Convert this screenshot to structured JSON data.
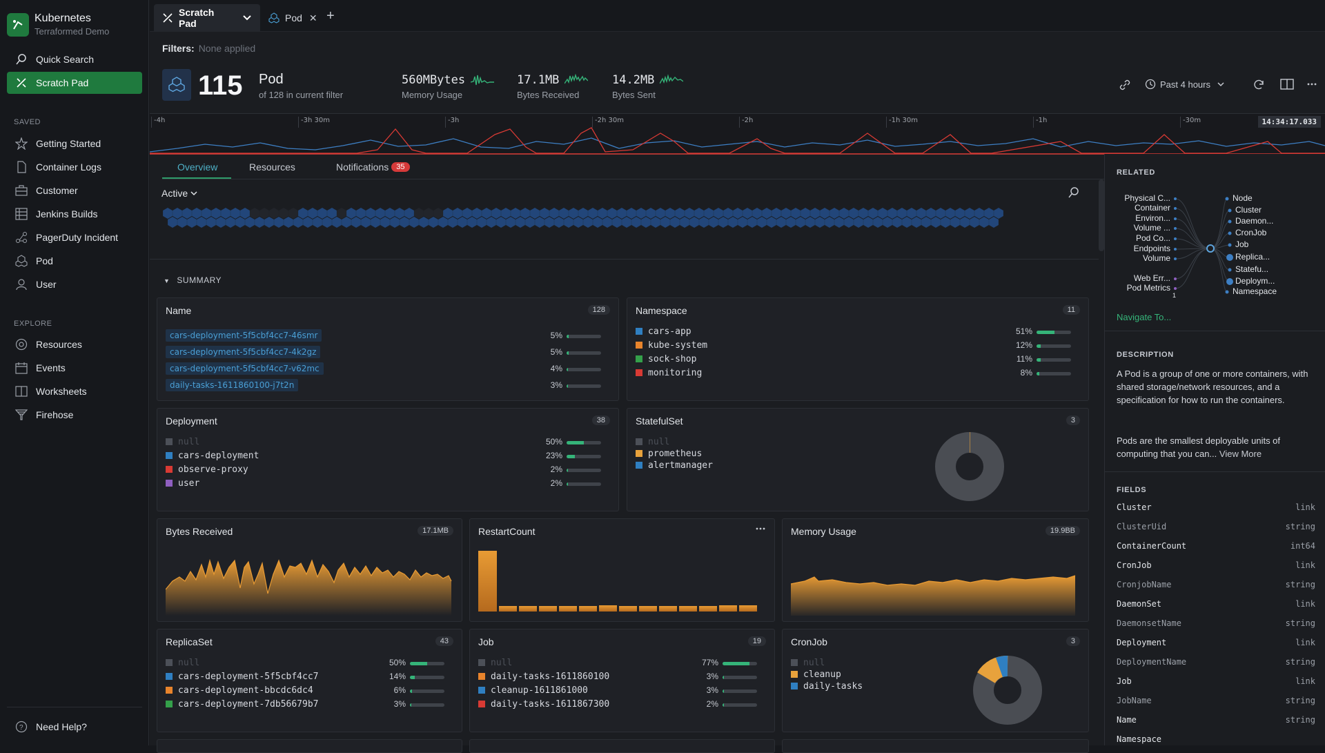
{
  "sidebar": {
    "brand_title": "Kubernetes",
    "brand_subtitle": "Terraformed Demo",
    "top_items": [
      {
        "label": "Quick Search",
        "icon": "search-icon"
      },
      {
        "label": "Scratch Pad",
        "icon": "scratch-pad-icon"
      }
    ],
    "saved_header": "SAVED",
    "saved_items": [
      {
        "label": "Getting Started",
        "icon": "star-icon"
      },
      {
        "label": "Container Logs",
        "icon": "document-icon"
      },
      {
        "label": "Customer",
        "icon": "briefcase-icon"
      },
      {
        "label": "Jenkins Builds",
        "icon": "grid-icon"
      },
      {
        "label": "PagerDuty Incident",
        "icon": "nodes-icon"
      },
      {
        "label": "Pod",
        "icon": "pod-icon"
      },
      {
        "label": "User",
        "icon": "user-icon"
      }
    ],
    "explore_header": "EXPLORE",
    "explore_items": [
      {
        "label": "Resources",
        "icon": "target-icon"
      },
      {
        "label": "Events",
        "icon": "calendar-icon"
      },
      {
        "label": "Worksheets",
        "icon": "book-icon"
      },
      {
        "label": "Firehose",
        "icon": "funnel-icon"
      }
    ],
    "help_label": "Need Help?"
  },
  "topbar": {
    "tabs": [
      {
        "label": "Scratch Pad",
        "icon": "scratch-pad-icon"
      },
      {
        "label": "Pod",
        "icon": "pod-icon"
      }
    ]
  },
  "filters": {
    "label": "Filters:",
    "value": "None applied"
  },
  "header": {
    "count": "115",
    "title": "Pod",
    "subtitle": "of 128 in current filter",
    "metrics": [
      {
        "value": "560MBytes",
        "label": "Memory Usage"
      },
      {
        "value": "17.1MB",
        "label": "Bytes Received"
      },
      {
        "value": "14.2MB",
        "label": "Bytes Sent"
      }
    ],
    "time_range": "Past 4 hours"
  },
  "timeline": {
    "ticks": [
      "-4h",
      "-3h 30m",
      "-3h",
      "-2h 30m",
      "-2h",
      "-1h 30m",
      "-1h",
      "-30m"
    ],
    "timestamp": "14:34:17.033",
    "colors": {
      "blue": "#3d7fc4",
      "red": "#d83a34"
    }
  },
  "subtabs": {
    "overview": "Overview",
    "resources": "Resources",
    "notifications": "Notifications",
    "notifications_count": "35"
  },
  "active_filter": "Active",
  "summary_label": "SUMMARY",
  "cards": {
    "name": {
      "title": "Name",
      "count": "128",
      "rows": [
        {
          "label": "cars-deployment-5f5cbf4cc7-46smr",
          "pct": "5%",
          "fill": 0.05
        },
        {
          "label": "cars-deployment-5f5cbf4cc7-4k2gz",
          "pct": "5%",
          "fill": 0.05
        },
        {
          "label": "cars-deployment-5f5cbf4cc7-v62mc",
          "pct": "4%",
          "fill": 0.04
        },
        {
          "label": "daily-tasks-1611860100-j7t2n",
          "pct": "3%",
          "fill": 0.03
        }
      ]
    },
    "namespace": {
      "title": "Namespace",
      "count": "11",
      "rows": [
        {
          "label": "cars-app",
          "pct": "51%",
          "fill": 0.51,
          "color": "#2f7fc1"
        },
        {
          "label": "kube-system",
          "pct": "12%",
          "fill": 0.12,
          "color": "#e8842c"
        },
        {
          "label": "sock-shop",
          "pct": "11%",
          "fill": 0.11,
          "color": "#34a04a"
        },
        {
          "label": "monitoring",
          "pct": "8%",
          "fill": 0.08,
          "color": "#d83a34"
        }
      ]
    },
    "deployment": {
      "title": "Deployment",
      "count": "38",
      "rows": [
        {
          "label": "null",
          "pct": "50%",
          "fill": 0.5,
          "color": "#4c5058",
          "dim": true
        },
        {
          "label": "cars-deployment",
          "pct": "23%",
          "fill": 0.23,
          "color": "#2f7fc1"
        },
        {
          "label": "observe-proxy",
          "pct": "2%",
          "fill": 0.02,
          "color": "#d83a34"
        },
        {
          "label": "user",
          "pct": "2%",
          "fill": 0.02,
          "color": "#8f5fc0"
        }
      ]
    },
    "statefulset": {
      "title": "StatefulSet",
      "count": "3",
      "rows": [
        {
          "label": "null",
          "color": "#4c5058",
          "dim": true
        },
        {
          "label": "prometheus",
          "color": "#e8a23c"
        },
        {
          "label": "alertmanager",
          "color": "#2f7fc1"
        }
      ]
    },
    "bytes_received": {
      "title": "Bytes Received",
      "count": "17.1MB"
    },
    "restart_count": {
      "title": "RestartCount"
    },
    "memory_usage": {
      "title": "Memory Usage",
      "count": "19.9BB"
    },
    "replicaset": {
      "title": "ReplicaSet",
      "count": "43",
      "rows": [
        {
          "label": "null",
          "pct": "50%",
          "fill": 0.5,
          "color": "#4c5058",
          "dim": true
        },
        {
          "label": "cars-deployment-5f5cbf4cc7",
          "pct": "14%",
          "fill": 0.14,
          "color": "#2f7fc1"
        },
        {
          "label": "cars-deployment-bbcdc6dc4",
          "pct": "6%",
          "fill": 0.06,
          "color": "#e8842c"
        },
        {
          "label": "cars-deployment-7db56679b7",
          "pct": "3%",
          "fill": 0.03,
          "color": "#34a04a"
        }
      ]
    },
    "job": {
      "title": "Job",
      "count": "19",
      "rows": [
        {
          "label": "null",
          "pct": "77%",
          "fill": 0.77,
          "color": "#4c5058",
          "dim": true
        },
        {
          "label": "daily-tasks-1611860100",
          "pct": "3%",
          "fill": 0.03,
          "color": "#e8842c"
        },
        {
          "label": "cleanup-1611861000",
          "pct": "3%",
          "fill": 0.03,
          "color": "#2f7fc1"
        },
        {
          "label": "daily-tasks-1611867300",
          "pct": "2%",
          "fill": 0.02,
          "color": "#d83a34"
        }
      ]
    },
    "cronjob": {
      "title": "CronJob",
      "count": "3",
      "rows": [
        {
          "label": "null",
          "color": "#4c5058",
          "dim": true
        },
        {
          "label": "cleanup",
          "color": "#e8a23c"
        },
        {
          "label": "daily-tasks",
          "color": "#2f7fc1"
        }
      ]
    }
  },
  "right_panel": {
    "related_header": "RELATED",
    "related_left": [
      "Physical C...",
      "Container",
      "Environ...",
      "Volume ...",
      "Pod Co...",
      "Endpoints",
      "Volume",
      "Web Err...",
      "Pod Metrics"
    ],
    "related_right": [
      "Node",
      "Cluster",
      "Daemon...",
      "CronJob",
      "Job",
      "Replica...",
      "Statefu...",
      "Deploym...",
      "Namespace"
    ],
    "related_page": "1",
    "navigate": "Navigate To...",
    "description_header": "DESCRIPTION",
    "description_1": "A Pod is a group of one or more containers, with shared storage/network resources, and a specification for how to run the containers.",
    "description_2": "Pods are the smallest deployable units of computing that you can...",
    "view_more": "View More",
    "fields_header": "FIELDS",
    "fields": [
      {
        "name": "Cluster",
        "type": "link",
        "dim": false
      },
      {
        "name": "ClusterUid",
        "type": "string",
        "dim": true
      },
      {
        "name": "ContainerCount",
        "type": "int64",
        "dim": false
      },
      {
        "name": "CronJob",
        "type": "link",
        "dim": false
      },
      {
        "name": "CronjobName",
        "type": "string",
        "dim": true
      },
      {
        "name": "DaemonSet",
        "type": "link",
        "dim": false
      },
      {
        "name": "DaemonsetName",
        "type": "string",
        "dim": true
      },
      {
        "name": "Deployment",
        "type": "link",
        "dim": false
      },
      {
        "name": "DeploymentName",
        "type": "string",
        "dim": true
      },
      {
        "name": "Job",
        "type": "link",
        "dim": false
      },
      {
        "name": "JobName",
        "type": "string",
        "dim": true
      },
      {
        "name": "Name",
        "type": "string",
        "dim": false
      },
      {
        "name": "Namespace",
        "type": "",
        "dim": false
      }
    ]
  },
  "colors": {
    "accent": "#1f7a3e",
    "link": "#4a9fd5",
    "chart_orange": "#e89b34",
    "bar_green": "#35b479"
  }
}
